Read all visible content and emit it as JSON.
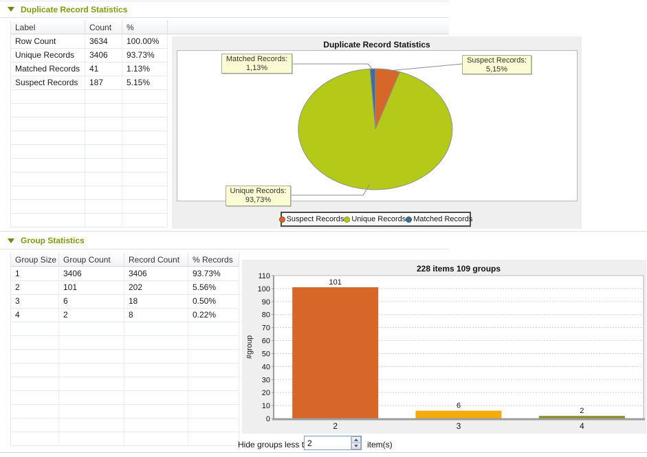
{
  "colors": {
    "section_title_green": "#7c9c0a",
    "panel_bg": "#efefef",
    "callout_bg": "#fcfcd4",
    "suspect_orange": "#d76728",
    "unique_green": "#b5c918",
    "matched_blue": "#3c6e9e",
    "bar_amber": "#f5ab0a",
    "bar_olive": "#8c8a30"
  },
  "section1": {
    "title": "Duplicate Record Statistics",
    "table": {
      "columns": [
        "Label",
        "Count",
        "%"
      ],
      "rows": [
        [
          "Row Count",
          "3634",
          "100.00%"
        ],
        [
          "Unique Records",
          "3406",
          "93.73%"
        ],
        [
          "Matched Records",
          "41",
          "1.13%"
        ],
        [
          "Suspect Records",
          "187",
          "5.15%"
        ]
      ],
      "empty_rows": 10
    },
    "chart_data": {
      "type": "pie",
      "title": "Duplicate Record Statistics",
      "slices": [
        {
          "label": "Suspect Records",
          "value_pct": 5.15,
          "callout_line1": "Suspect Records:",
          "callout_line2": "5,15%",
          "color": "#d76728"
        },
        {
          "label": "Unique Records",
          "value_pct": 93.73,
          "callout_line1": "Unique Records:",
          "callout_line2": "93,73%",
          "color": "#b5c918"
        },
        {
          "label": "Matched Records",
          "value_pct": 1.13,
          "callout_line1": "Matched Records:",
          "callout_line2": "1,13%",
          "color": "#3c6e9e"
        }
      ],
      "start_angle_deg": 0,
      "direction": "clockwise",
      "legend_position": "bottom",
      "legend_order": [
        "Suspect Records",
        "Unique Records",
        "Matched Records"
      ]
    }
  },
  "section2": {
    "title": "Group Statistics",
    "table": {
      "columns": [
        "Group Size",
        "Group Count",
        "Record Count",
        "% Records"
      ],
      "rows": [
        [
          "1",
          "3406",
          "3406",
          "93.73%"
        ],
        [
          "2",
          "101",
          "202",
          "5.56%"
        ],
        [
          "3",
          "6",
          "18",
          "0.50%"
        ],
        [
          "4",
          "2",
          "8",
          "0.22%"
        ]
      ],
      "empty_rows": 9
    },
    "chart_data": {
      "type": "bar",
      "title": "228 items 109 groups",
      "categories": [
        "2",
        "3",
        "4"
      ],
      "values": [
        101,
        6,
        2
      ],
      "bar_colors": [
        "#d76728",
        "#f5ab0a",
        "#8c8a30"
      ],
      "xlabel": "",
      "ylabel": "#group",
      "ylim": [
        0,
        110
      ],
      "ytick_step": 10,
      "grid": true,
      "legend_position": "none"
    },
    "hide_control": {
      "label": "Hide groups less than",
      "value": "2",
      "suffix": "item(s)"
    }
  }
}
